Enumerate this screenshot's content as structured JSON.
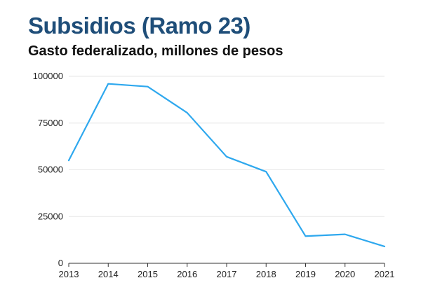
{
  "chart_data": {
    "type": "line",
    "title": "Subsidios (Ramo 23)",
    "subtitle": "Gasto federalizado, millones de pesos",
    "xlabel": "",
    "ylabel": "",
    "x": [
      "2013",
      "2014",
      "2015",
      "2016",
      "2017",
      "2018",
      "2019",
      "2020",
      "2021"
    ],
    "series": [
      {
        "name": "Subsidios (Ramo 23)",
        "color": "#2ea8ee",
        "values": [
          55000,
          96000,
          94500,
          80500,
          57000,
          49000,
          14500,
          15500,
          9000
        ]
      }
    ],
    "ylim": [
      0,
      100000
    ],
    "yticks": [
      0,
      25000,
      50000,
      75000,
      100000
    ],
    "ytick_labels": [
      "0",
      "25000",
      "50000",
      "75000",
      "100000"
    ],
    "grid": true,
    "colors": {
      "title": "#1f4e79",
      "gridline": "#e6e6e6",
      "axis": "#333333"
    }
  }
}
